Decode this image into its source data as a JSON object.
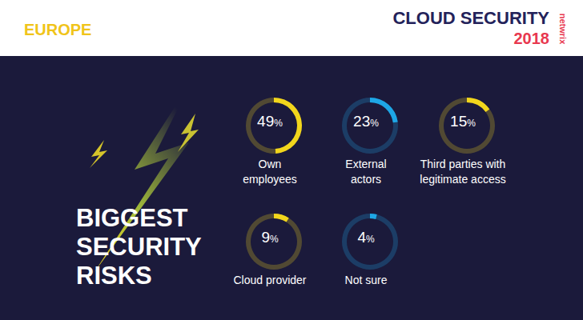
{
  "header": {
    "region": "EUROPE",
    "title": "CLOUD SECURITY",
    "year": "2018",
    "brand": "netwrix"
  },
  "chart_data": {
    "type": "pie",
    "title": "BIGGEST SECURITY RISKS",
    "categories": [
      "Own\nemployees",
      "External\nactors",
      "Third parties with\nlegitimate access",
      "Cloud provider",
      "Not sure"
    ],
    "values": [
      49,
      23,
      15,
      9,
      4
    ],
    "value_labels": [
      "49%",
      "23%",
      "15%",
      "9%",
      "4%"
    ],
    "colors": [
      "#f2d61c",
      "#1ea7e6",
      "#f2d61c",
      "#f2d61c",
      "#1ea7e6"
    ]
  }
}
